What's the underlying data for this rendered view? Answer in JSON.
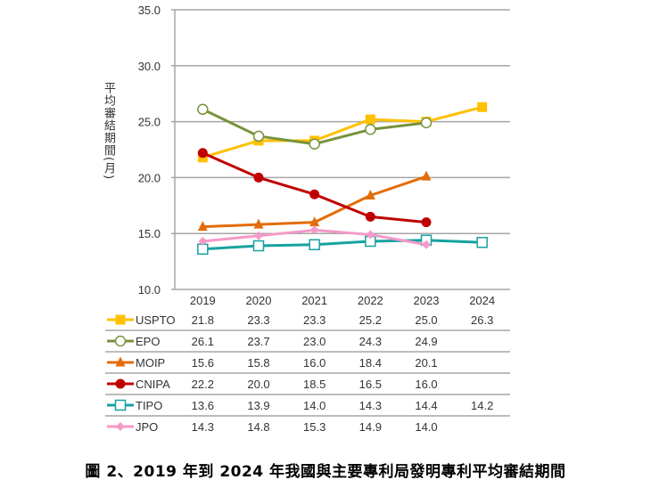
{
  "chart_data": {
    "type": "line",
    "title": "",
    "ylabel": "平均審結期間(月)",
    "xlabel": "",
    "categories": [
      "2019",
      "2020",
      "2021",
      "2022",
      "2023",
      "2024"
    ],
    "ylim": [
      10.0,
      35.0
    ],
    "yticks": [
      "10.0",
      "15.0",
      "20.0",
      "25.0",
      "30.0",
      "35.0"
    ],
    "grid": true,
    "legend": "data-table-below",
    "series": [
      {
        "name": "USPTO",
        "color": "#FFC000",
        "marker": "square-filled",
        "values": [
          21.8,
          23.3,
          23.3,
          25.2,
          25.0,
          26.3
        ]
      },
      {
        "name": "EPO",
        "color": "#77933C",
        "marker": "circle-open",
        "values": [
          26.1,
          23.7,
          23.0,
          24.3,
          24.9,
          null
        ]
      },
      {
        "name": "MOIP",
        "color": "#E36C09",
        "marker": "triangle-filled",
        "values": [
          15.6,
          15.8,
          16.0,
          18.4,
          20.1,
          null
        ]
      },
      {
        "name": "CNIPA",
        "color": "#C00000",
        "marker": "circle-filled",
        "values": [
          22.2,
          20.0,
          18.5,
          16.5,
          16.0,
          null
        ]
      },
      {
        "name": "TIPO",
        "color": "#17A2A0",
        "marker": "square-open",
        "values": [
          13.6,
          13.9,
          14.0,
          14.3,
          14.4,
          14.2
        ]
      },
      {
        "name": "JPO",
        "color": "#F49AC8",
        "marker": "diamond-filled",
        "values": [
          14.3,
          14.8,
          15.3,
          14.9,
          14.0,
          null
        ]
      }
    ],
    "table": [
      [
        "21.8",
        "23.3",
        "23.3",
        "25.2",
        "25.0",
        "26.3"
      ],
      [
        "26.1",
        "23.7",
        "23.0",
        "24.3",
        "24.9",
        ""
      ],
      [
        "15.6",
        "15.8",
        "16.0",
        "18.4",
        "20.1",
        ""
      ],
      [
        "22.2",
        "20.0",
        "18.5",
        "16.5",
        "16.0",
        ""
      ],
      [
        "13.6",
        "13.9",
        "14.0",
        "14.3",
        "14.4",
        "14.2"
      ],
      [
        "14.3",
        "14.8",
        "15.3",
        "14.9",
        "14.0",
        ""
      ]
    ]
  },
  "caption": "圖 2、2019 年到 2024 年我國與主要專利局發明專利平均審結期間"
}
